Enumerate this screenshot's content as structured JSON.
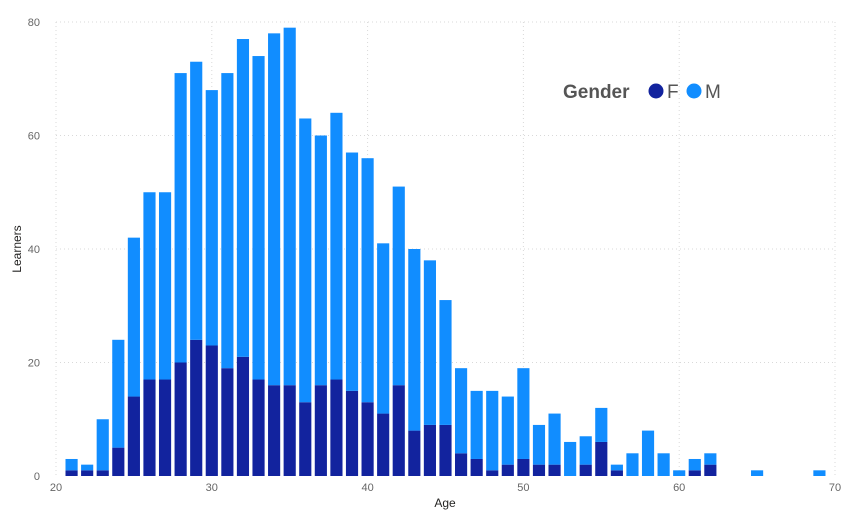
{
  "chart_data": {
    "type": "bar",
    "stacked": true,
    "x_axis_type": "continuous",
    "xlabel": "Age",
    "ylabel": "Learners",
    "xlim": [
      20,
      70
    ],
    "ylim": [
      0,
      80
    ],
    "x_ticks": [
      20,
      30,
      40,
      50,
      60,
      70
    ],
    "y_ticks": [
      0,
      20,
      40,
      60,
      80
    ],
    "grid": true,
    "legend": {
      "title": "Gender",
      "placement": "top-right"
    },
    "x": [
      21,
      22,
      23,
      24,
      25,
      26,
      27,
      28,
      29,
      30,
      31,
      32,
      33,
      34,
      35,
      36,
      37,
      38,
      39,
      40,
      41,
      42,
      43,
      44,
      45,
      46,
      47,
      48,
      49,
      50,
      51,
      52,
      53,
      54,
      55,
      56,
      57,
      58,
      59,
      60,
      61,
      62,
      63,
      64,
      65,
      66,
      67,
      68,
      69
    ],
    "series": [
      {
        "name": "F",
        "color": "#12239e",
        "values": [
          1,
          1,
          1,
          5,
          14,
          17,
          17,
          20,
          24,
          23,
          19,
          21,
          17,
          16,
          16,
          13,
          16,
          17,
          15,
          13,
          11,
          16,
          8,
          9,
          9,
          4,
          3,
          1,
          2,
          3,
          2,
          2,
          0,
          2,
          6,
          1,
          0,
          0,
          0,
          0,
          1,
          2,
          0,
          0,
          0,
          0,
          0,
          0,
          0
        ]
      },
      {
        "name": "M",
        "color": "#118dff",
        "values": [
          2,
          1,
          9,
          19,
          28,
          33,
          33,
          51,
          49,
          45,
          52,
          56,
          57,
          62,
          63,
          50,
          44,
          47,
          42,
          43,
          30,
          35,
          32,
          29,
          22,
          15,
          12,
          14,
          12,
          16,
          7,
          9,
          6,
          5,
          6,
          1,
          4,
          8,
          4,
          1,
          2,
          2,
          0,
          0,
          1,
          0,
          0,
          0,
          1
        ]
      }
    ]
  }
}
